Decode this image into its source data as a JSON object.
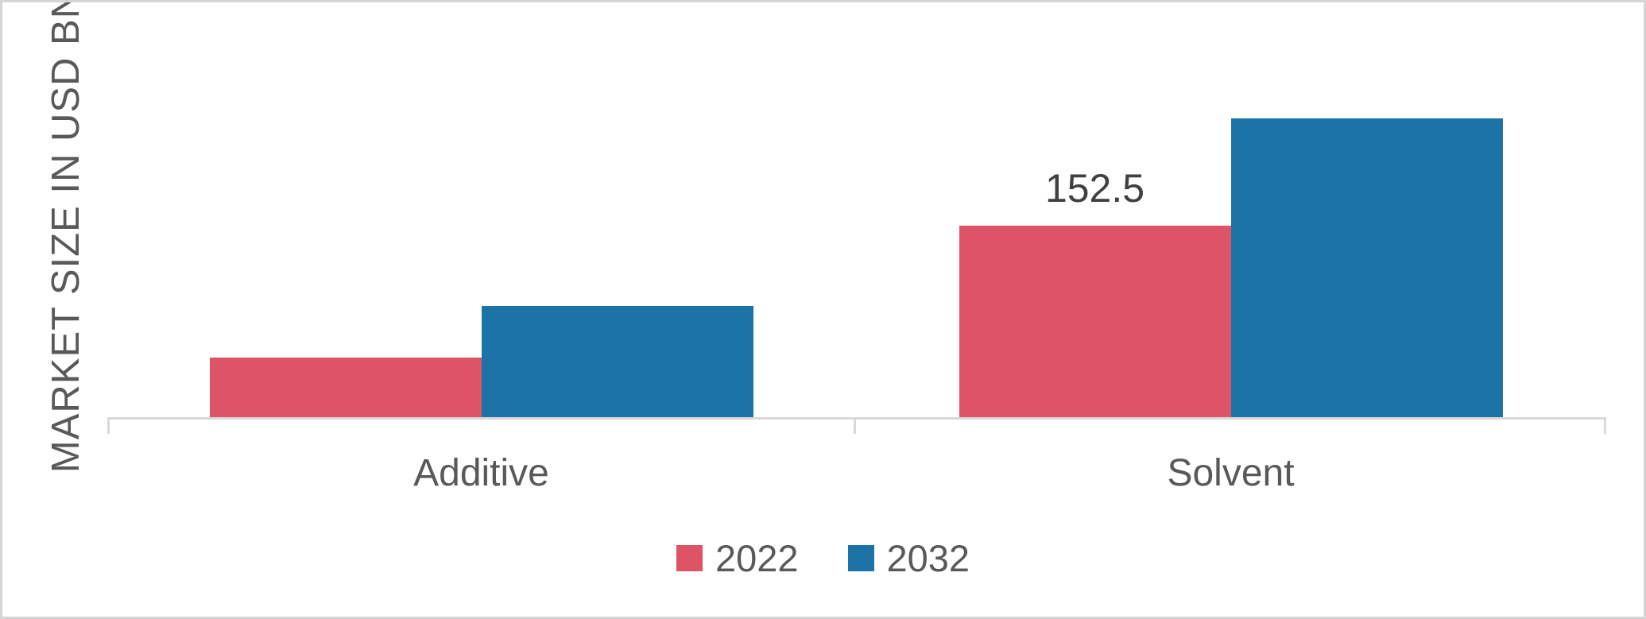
{
  "colors": {
    "series_2022": "#DD5467",
    "series_2032": "#1B74A5",
    "axis_line": "#D9D9D9",
    "label_text": "#595959",
    "data_label_text": "#404040",
    "canvas_border": "#D5D5D5",
    "background": "#FFFFFF"
  },
  "chart_data": {
    "type": "bar",
    "title": "",
    "categories": [
      "Additive",
      "Solvent"
    ],
    "series": [
      {
        "name": "2022",
        "color": "#DD5467",
        "values": [
          48,
          152.5
        ],
        "data_labels": [
          null,
          "152.5"
        ]
      },
      {
        "name": "2032",
        "color": "#1B74A5",
        "values": [
          89,
          238
        ],
        "data_labels": [
          null,
          null
        ]
      }
    ],
    "xlabel": "",
    "ylabel": "MARKET SIZE IN USD BN",
    "ylim": [
      0,
      330
    ],
    "y_axis_ticks_visible": false,
    "grid": false,
    "legend_position": "bottom",
    "annotations": [
      "Only the Solvent 2022 bar carries a data label: 152.5"
    ]
  }
}
